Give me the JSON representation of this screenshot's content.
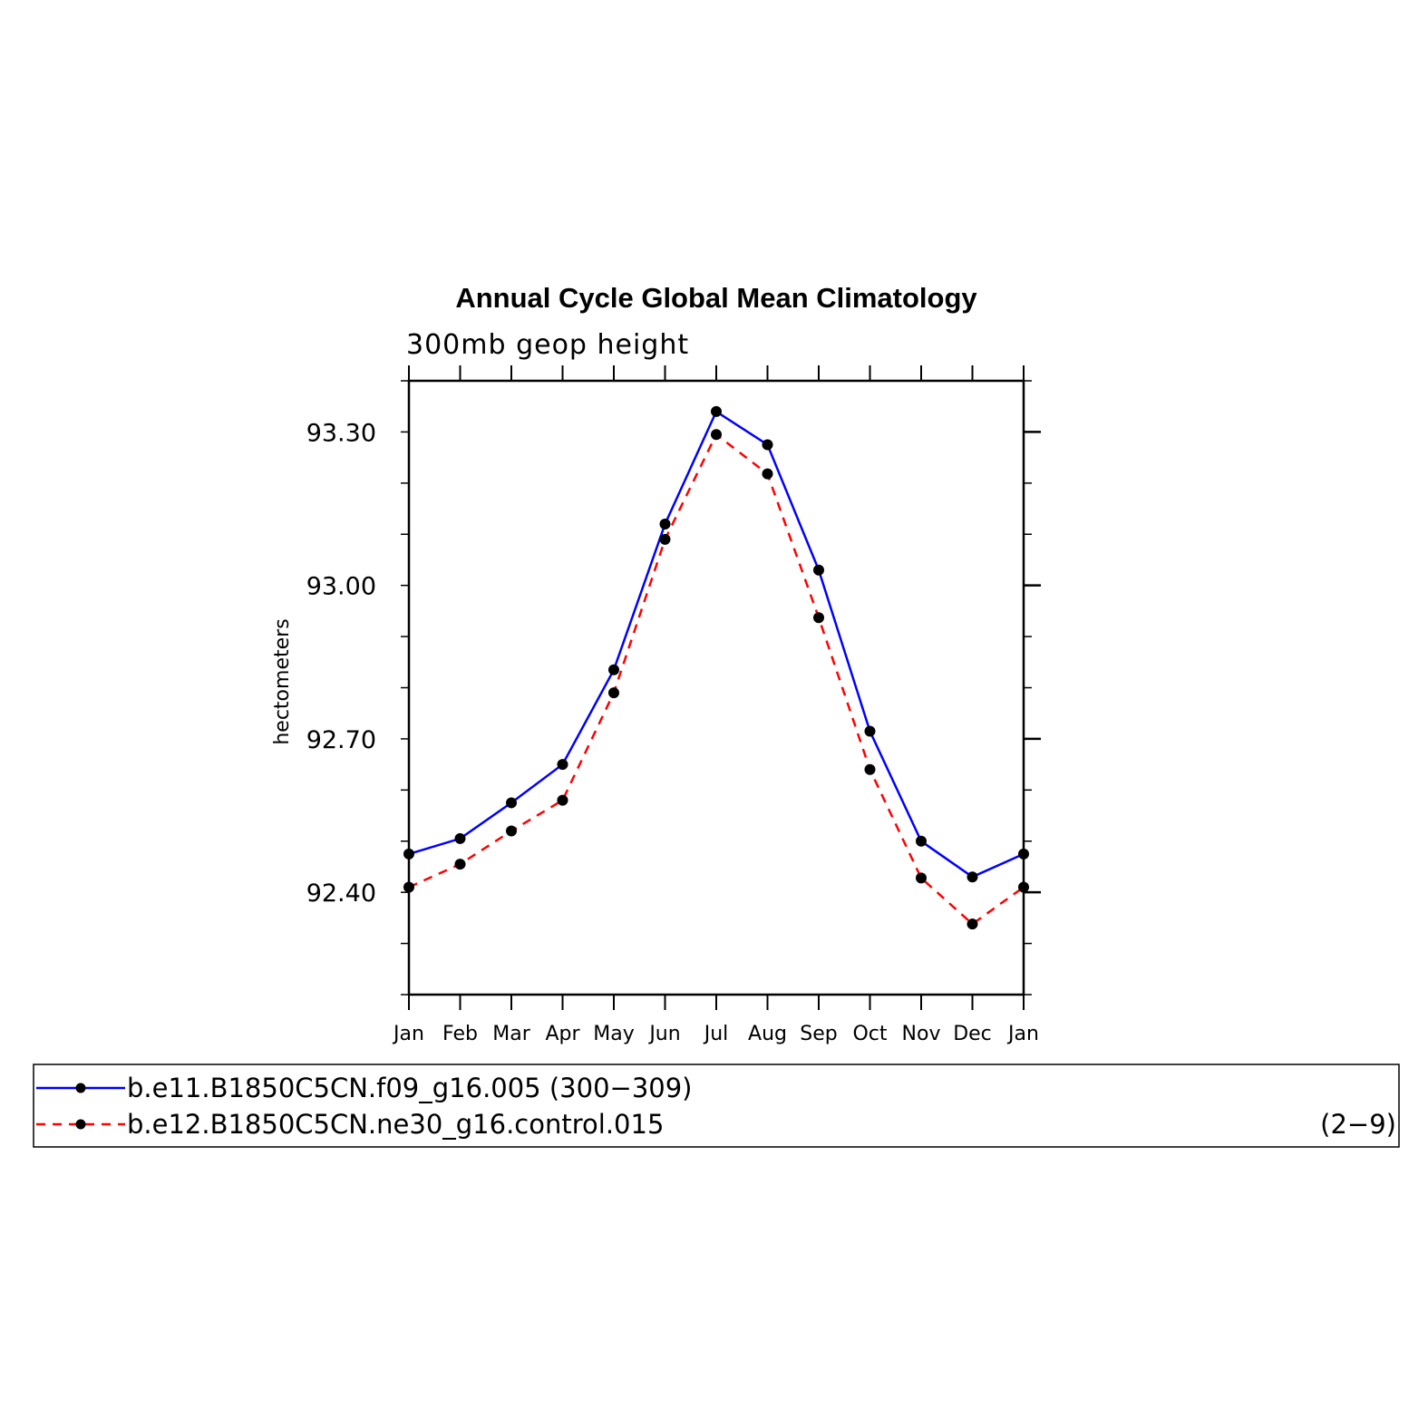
{
  "chart_data": {
    "type": "line",
    "title": "Annual Cycle Global Mean Climatology",
    "subtitle": "300mb geop height",
    "xlabel": "",
    "ylabel": "hectometers",
    "categories": [
      "Jan",
      "Feb",
      "Mar",
      "Apr",
      "May",
      "Jun",
      "Jul",
      "Aug",
      "Sep",
      "Oct",
      "Nov",
      "Dec",
      "Jan"
    ],
    "ylim": [
      92.2,
      93.4
    ],
    "yticks": [
      92.4,
      92.7,
      93.0,
      93.3
    ],
    "ytick_labels": [
      "92.40",
      "92.70",
      "93.00",
      "93.30"
    ],
    "series": [
      {
        "name": "b.e11.B1850C5CN.f09_g16.005 (300-309)",
        "color": "#0000ff",
        "dash": "solid",
        "values": [
          92.475,
          92.505,
          92.575,
          92.65,
          92.835,
          93.12,
          93.34,
          93.275,
          93.03,
          92.715,
          92.5,
          92.43,
          92.475
        ]
      },
      {
        "name": "b.e12.B1850C5CN.ne30_g16.control.015",
        "color": "#ff0000",
        "dash": "dashed",
        "values": [
          92.41,
          92.455,
          92.52,
          92.58,
          92.79,
          93.09,
          93.295,
          93.218,
          92.937,
          92.64,
          92.428,
          92.338,
          92.41
        ]
      }
    ],
    "legend": {
      "position": "bottom",
      "entries": [
        {
          "label": "b.e11.B1850C5CN.f09_g16.005 (300−309)"
        },
        {
          "label": "b.e12.B1850C5CN.ne30_g16.control.015",
          "extra": "(2−9)"
        }
      ]
    }
  }
}
